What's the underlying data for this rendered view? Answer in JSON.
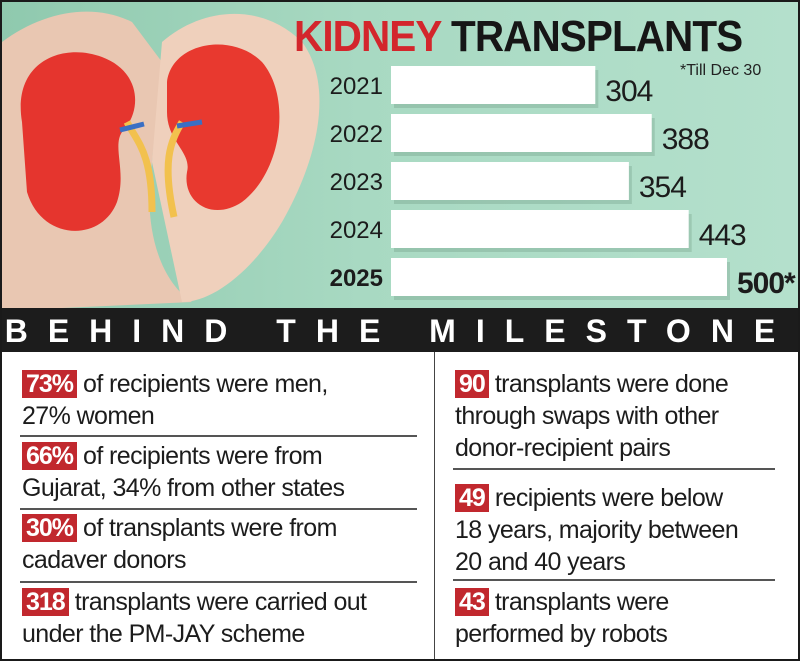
{
  "chart_data": {
    "type": "bar",
    "orientation": "horizontal",
    "title": "KIDNEY TRANSPLANTS",
    "title_parts": [
      "KIDNEY",
      "TRANSPLANTS"
    ],
    "categories": [
      "2021",
      "2022",
      "2023",
      "2024",
      "2025"
    ],
    "values": [
      304,
      388,
      354,
      443,
      500
    ],
    "value_labels": [
      "304",
      "388",
      "354",
      "443",
      "500*"
    ],
    "note": "*Till Dec 30",
    "xlim": [
      0,
      500
    ],
    "grid": false,
    "bar_color": "#ffffff",
    "background_color": "#a8d9c2"
  },
  "section": {
    "heading": "BEHIND THE MILESTONE",
    "left": [
      {
        "badge": "73%",
        "text": "of recipients were men,",
        "text2": "27% women"
      },
      {
        "badge": "66%",
        "text": "of recipients were from",
        "text2": "Gujarat, 34% from other states"
      },
      {
        "badge": "30%",
        "text": "of transplants were from",
        "text2": "cadaver donors"
      },
      {
        "badge": "318",
        "text": "transplants were carried out",
        "text2": "under the PM-JAY scheme"
      }
    ],
    "right": [
      {
        "badge": "90",
        "text": "transplants were done",
        "text2": "through swaps with other",
        "text3": "donor-recipient pairs"
      },
      {
        "badge": "49",
        "text": "recipients were below",
        "text2": "18 years, majority between",
        "text3": "20 and 40 years"
      },
      {
        "badge": "43",
        "text": "transplants were",
        "text2": "performed by robots"
      }
    ],
    "badge_color": "#c1282e"
  }
}
